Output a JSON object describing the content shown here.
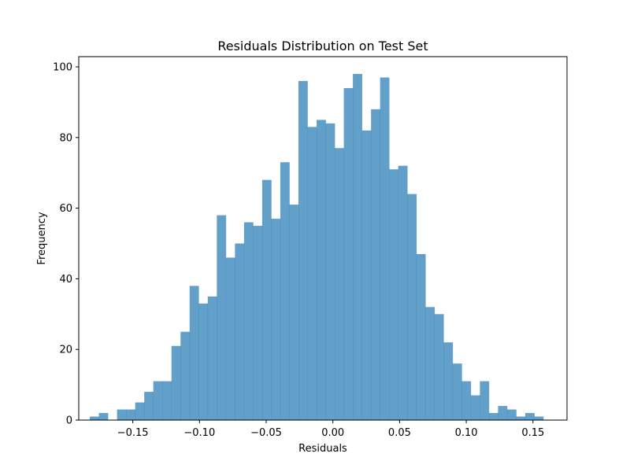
{
  "chart_data": {
    "type": "bar",
    "title": "Residuals Distribution on Test Set",
    "xlabel": "Residuals",
    "ylabel": "Frequency",
    "bar_color": "#1f77b4",
    "bar_opacity": 0.7,
    "xlim": [
      -0.1905,
      0.1755
    ],
    "ylim": [
      0,
      102.9
    ],
    "xticks": [
      -0.15,
      -0.1,
      -0.05,
      0.0,
      0.05,
      0.1,
      0.15
    ],
    "xtick_labels": [
      "−0.15",
      "−0.10",
      "−0.05",
      "0.00",
      "0.05",
      "0.10",
      "0.15"
    ],
    "yticks": [
      0,
      20,
      40,
      60,
      80,
      100
    ],
    "ytick_labels": [
      "0",
      "20",
      "40",
      "60",
      "80",
      "100"
    ],
    "grid": false,
    "bin_edges": [
      -0.1822,
      -0.1754,
      -0.1686,
      -0.1618,
      -0.155,
      -0.1482,
      -0.1414,
      -0.1346,
      -0.1278,
      -0.121,
      -0.1142,
      -0.1074,
      -0.1006,
      -0.0938,
      -0.087,
      -0.0802,
      -0.0734,
      -0.0666,
      -0.0598,
      -0.053,
      -0.0462,
      -0.0394,
      -0.0326,
      -0.0258,
      -0.019,
      -0.0122,
      -0.0054,
      0.0014,
      0.0082,
      0.015,
      0.0218,
      0.0286,
      0.0354,
      0.0422,
      0.049,
      0.0558,
      0.0626,
      0.0694,
      0.0762,
      0.083,
      0.0898,
      0.0966,
      0.1034,
      0.1102,
      0.117,
      0.1238,
      0.1306,
      0.1374,
      0.1442,
      0.151,
      0.1578
    ],
    "counts": [
      1,
      2,
      0,
      3,
      3,
      5,
      8,
      11,
      11,
      21,
      25,
      38,
      33,
      35,
      58,
      46,
      50,
      56,
      55,
      68,
      57,
      73,
      61,
      96,
      83,
      85,
      84,
      77,
      94,
      98,
      82,
      88,
      97,
      71,
      72,
      64,
      47,
      32,
      30,
      22,
      16,
      11,
      7,
      11,
      2,
      4,
      3,
      1,
      2,
      1
    ]
  }
}
